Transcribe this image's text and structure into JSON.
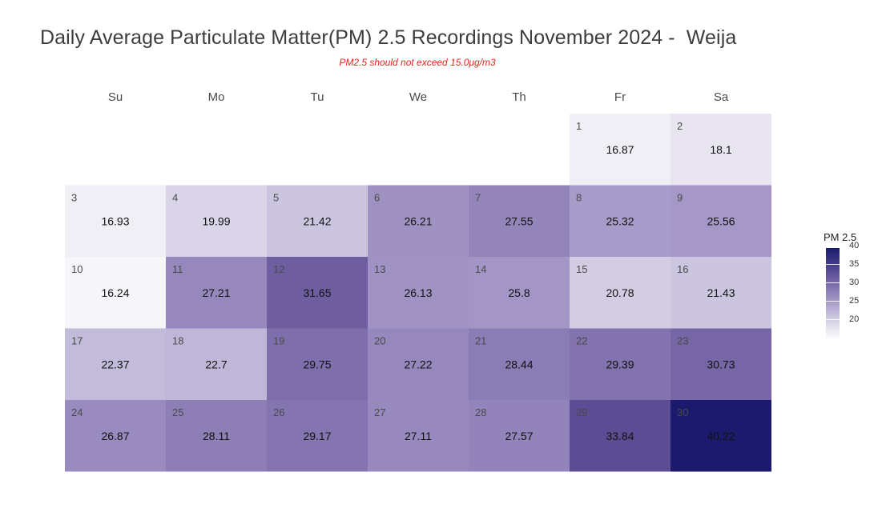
{
  "chart_data": {
    "type": "heatmap",
    "title": "Daily Average Particulate Matter(PM) 2.5 Recordings November 2024 -  Weija",
    "subtitle": "PM2.5 should not exceed 15.0μg/m3",
    "weekdays": [
      "Su",
      "Mo",
      "Tu",
      "We",
      "Th",
      "Fr",
      "Sa"
    ],
    "first_weekday_index": 5,
    "days": [
      1,
      2,
      3,
      4,
      5,
      6,
      7,
      8,
      9,
      10,
      11,
      12,
      13,
      14,
      15,
      16,
      17,
      18,
      19,
      20,
      21,
      22,
      23,
      24,
      25,
      26,
      27,
      28,
      29,
      30
    ],
    "values": [
      "16.87",
      "18.1",
      "16.93",
      "19.99",
      "21.42",
      "26.21",
      "27.55",
      "25.32",
      "25.56",
      "16.24",
      "27.21",
      "31.65",
      "26.13",
      "25.8",
      "20.78",
      "21.43",
      "22.37",
      "22.7",
      "29.75",
      "27.22",
      "28.44",
      "29.39",
      "30.73",
      "26.87",
      "28.11",
      "29.17",
      "27.11",
      "27.57",
      "33.84",
      "40.22"
    ],
    "legend": {
      "title": "PM 2.5",
      "ticks": [
        "40",
        "35",
        "30",
        "25",
        "20"
      ],
      "range": [
        15,
        40
      ],
      "low_color": "#ffffff",
      "high_color": "#1b1a6d"
    }
  }
}
